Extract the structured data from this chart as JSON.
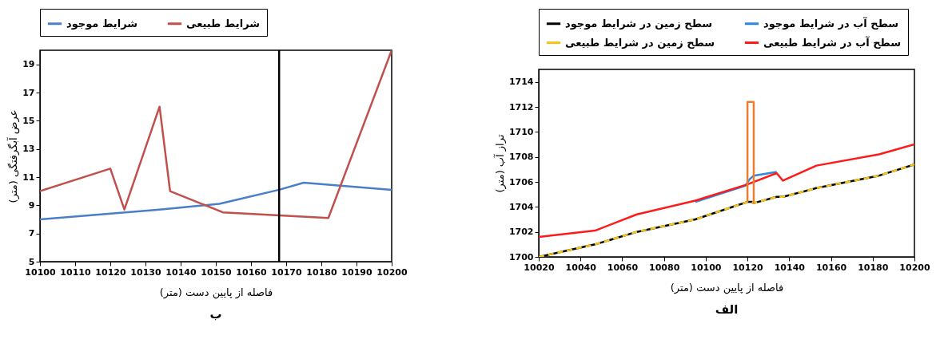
{
  "chart_data": [
    {
      "type": "line",
      "title": "الف",
      "xlabel": "فاصله از پایین دست (متر)",
      "ylabel": "تراز آب (متر)",
      "xlim": [
        10020,
        10200
      ],
      "xticks": [
        10020,
        10040,
        10060,
        10080,
        10100,
        10120,
        10140,
        10160,
        10180,
        10200
      ],
      "ylim": [
        1700,
        1715
      ],
      "yticks": [
        1700,
        1702,
        1704,
        1706,
        1708,
        1710,
        1712,
        1714
      ],
      "grid": false,
      "legend": "top",
      "marker": "none",
      "series": [
        {
          "name": "سطح زمین در شرایط موجود",
          "color": "#000000",
          "x": [
            10020,
            10047,
            10067,
            10095,
            10120,
            10122,
            10123,
            10134,
            10137,
            10153,
            10183,
            10200
          ],
          "values": [
            1700,
            1701,
            1702,
            1703,
            1704.4,
            1704.4,
            1704.3,
            1704.8,
            1704.8,
            1705.5,
            1706.5,
            1707.4
          ]
        },
        {
          "name": "سطح آب در شرایط موجود",
          "color": "#2e86de",
          "x": [
            10095,
            10119,
            10121,
            10123,
            10134
          ],
          "values": [
            1704.4,
            1705.7,
            1706.2,
            1706.5,
            1706.8
          ]
        },
        {
          "name": "سطح زمین در شرایط طبیعی",
          "color": "#f5c518",
          "line_style": "dashed",
          "x": [
            10020,
            10047,
            10067,
            10095,
            10120,
            10122,
            10123,
            10134,
            10137,
            10153,
            10183,
            10200
          ],
          "values": [
            1700,
            1701,
            1702,
            1703,
            1704.4,
            1704.4,
            1704.3,
            1704.8,
            1704.8,
            1705.5,
            1706.5,
            1707.4
          ]
        },
        {
          "name": "سطح آب در شرایط طبیعی",
          "color": "#ff1a1a",
          "x": [
            10020,
            10047,
            10067,
            10095,
            10120,
            10134,
            10137,
            10153,
            10183,
            10200
          ],
          "values": [
            1701.6,
            1702.1,
            1703.4,
            1704.5,
            1705.8,
            1706.7,
            1706.1,
            1707.3,
            1708.2,
            1709
          ]
        },
        {
          "color": "#ed7d31",
          "x": [
            10120,
            10120,
            10123,
            10123
          ],
          "values": [
            1704.4,
            1712.4,
            1712.4,
            1704.3
          ]
        }
      ]
    },
    {
      "type": "line",
      "title": "ب",
      "xlabel": "فاصله از پایین دست (متر)",
      "ylabel": "عرض آبگرفتگی (متر)",
      "xlim": [
        10100,
        10200
      ],
      "xticks": [
        10100,
        10110,
        10120,
        10130,
        10140,
        10150,
        10160,
        10170,
        10180,
        10190,
        10200
      ],
      "ylim": [
        5,
        20
      ],
      "yticks": [
        5,
        7,
        9,
        11,
        13,
        15,
        17,
        19
      ],
      "grid": false,
      "legend": "top",
      "marker": "none",
      "ref_lines": [
        {
          "axis": "x",
          "value": 10168,
          "color": "#000000"
        }
      ],
      "series": [
        {
          "name": "شرایط موجود",
          "color": "#4a7ec8",
          "x": [
            10100,
            10134,
            10151,
            10168,
            10175,
            10200
          ],
          "values": [
            8,
            8.7,
            9.1,
            10.1,
            10.6,
            10.1
          ]
        },
        {
          "name": "شرایط طبیعی",
          "color": "#c0504d",
          "x": [
            10100,
            10120,
            10124,
            10134,
            10137,
            10152,
            10182,
            10200
          ],
          "values": [
            10,
            11.6,
            8.7,
            16,
            10,
            8.5,
            8.1,
            20
          ]
        }
      ]
    }
  ]
}
